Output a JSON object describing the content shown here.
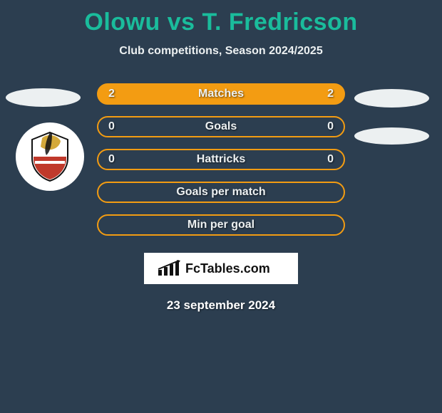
{
  "title": "Olowu vs T. Fredricson",
  "subtitle": "Club competitions, Season 2024/2025",
  "rows": [
    {
      "left": "2",
      "label": "Matches",
      "right": "2",
      "filled": true
    },
    {
      "left": "0",
      "label": "Goals",
      "right": "0",
      "filled": false
    },
    {
      "left": "0",
      "label": "Hattricks",
      "right": "0",
      "filled": false
    },
    {
      "left": "",
      "label": "Goals per match",
      "right": "",
      "filled": false
    },
    {
      "left": "",
      "label": "Min per goal",
      "right": "",
      "filled": false
    }
  ],
  "brand": "FcTables.com",
  "date": "23 september 2024",
  "colors": {
    "bg": "#2c3e50",
    "accent": "#1abc9c",
    "row_border": "#f39c12",
    "row_fill": "#f39c12",
    "text": "#ecf0f1"
  }
}
